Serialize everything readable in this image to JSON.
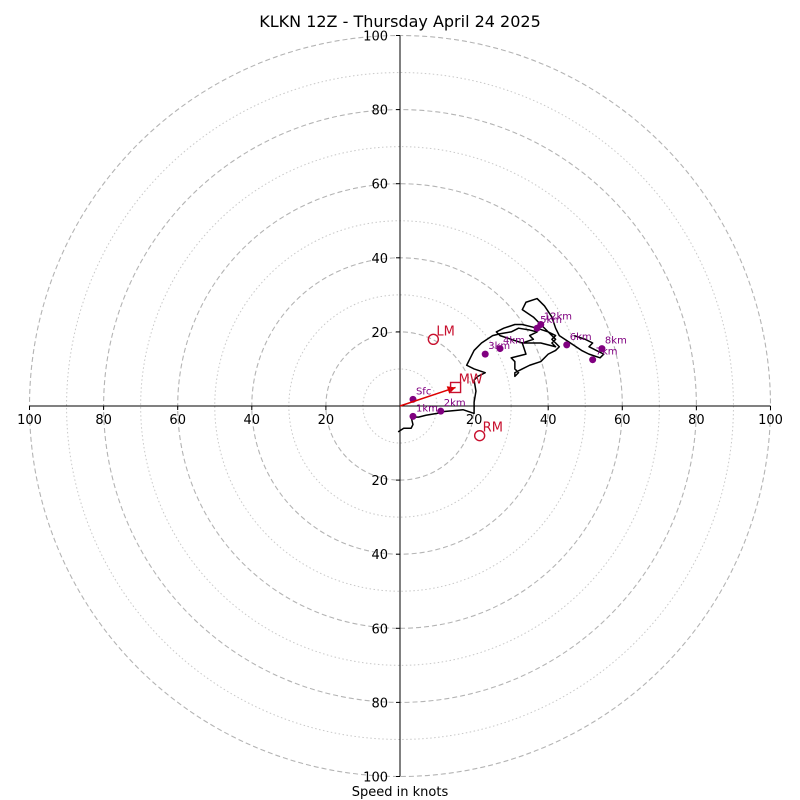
{
  "chart_data": {
    "type": "line",
    "title": "KLKN 12Z - Thursday April 24 2025",
    "xlabel": "Speed in knots",
    "ylabel": "",
    "xlim": [
      -100,
      100
    ],
    "ylim": [
      -100,
      100
    ],
    "major_rings": [
      20,
      40,
      60,
      80,
      100
    ],
    "minor_rings": [
      10,
      30,
      50,
      70,
      90
    ],
    "tick_values": [
      100,
      80,
      60,
      40,
      20
    ],
    "center_tick_values": [
      20,
      40,
      60,
      80,
      100
    ],
    "grid": true,
    "series": [
      {
        "type": "line",
        "color": "#000000",
        "x": [
          -0.5,
          1,
          3,
          3.5,
          3,
          5,
          7,
          10,
          12,
          17,
          20,
          20,
          20.5,
          20,
          21,
          23,
          20,
          18,
          19,
          20,
          22,
          25,
          27,
          30,
          32,
          35,
          37,
          35,
          36,
          33,
          34,
          30,
          31,
          31,
          32,
          31,
          31,
          33,
          35,
          38,
          40,
          42,
          43,
          42,
          41,
          42,
          40,
          37,
          33,
          31,
          28,
          26,
          27,
          30,
          33,
          36,
          38,
          40,
          42,
          41,
          42,
          40,
          38,
          36,
          33,
          34,
          37,
          39,
          41,
          42,
          43,
          46,
          49,
          51,
          54,
          55,
          53,
          51,
          52,
          50,
          47
        ],
        "y": [
          -7,
          -6,
          -6,
          -5,
          -3,
          -3,
          -2.5,
          -2,
          -1.5,
          -1,
          -2,
          1,
          4,
          7,
          8,
          9,
          10,
          11,
          13,
          15,
          17,
          19,
          19.5,
          20,
          21,
          20.5,
          20,
          19,
          18,
          17,
          14,
          13,
          12,
          10,
          9,
          8,
          9,
          10,
          11,
          12,
          14,
          15,
          16,
          17,
          18,
          19,
          20,
          21,
          22,
          22,
          21,
          20,
          19,
          18,
          17,
          17,
          17,
          16.5,
          16,
          17,
          18,
          20,
          22,
          24,
          26,
          28,
          29,
          27,
          24,
          21,
          19,
          17,
          15,
          14,
          13,
          14,
          15,
          16,
          17,
          18,
          19
        ]
      },
      {
        "type": "hodograph_points",
        "color": "#800080",
        "points": [
          {
            "label": "Sfc",
            "x": 3.5,
            "y": 1.8
          },
          {
            "label": "1km",
            "x": 3.5,
            "y": -2.8
          },
          {
            "label": "2km",
            "x": 11,
            "y": -1.4
          },
          {
            "label": "3km",
            "x": 23,
            "y": 14
          },
          {
            "label": "4km",
            "x": 27,
            "y": 15.5
          },
          {
            "label": "5km",
            "x": 37,
            "y": 21
          },
          {
            "label": "6km",
            "x": 45,
            "y": 16.5
          },
          {
            "label": "7km",
            "x": 52,
            "y": 12.5
          },
          {
            "label": "8km",
            "x": 54.5,
            "y": 15.5
          },
          {
            "label": "12km",
            "x": 38,
            "y": 22
          }
        ]
      }
    ],
    "annotations": [
      {
        "label": "LM",
        "x": 9,
        "y": 18,
        "marker": "circle",
        "color": "#c8102e"
      },
      {
        "label": "MW",
        "x": 15,
        "y": 5,
        "marker": "square",
        "color": "#c8102e"
      },
      {
        "label": "RM",
        "x": 21.5,
        "y": -8,
        "marker": "circle",
        "color": "#c8102e"
      }
    ],
    "storm_motion_arrow": {
      "from": [
        0,
        0
      ],
      "to": [
        15,
        5
      ],
      "color": "#dd0000"
    }
  }
}
